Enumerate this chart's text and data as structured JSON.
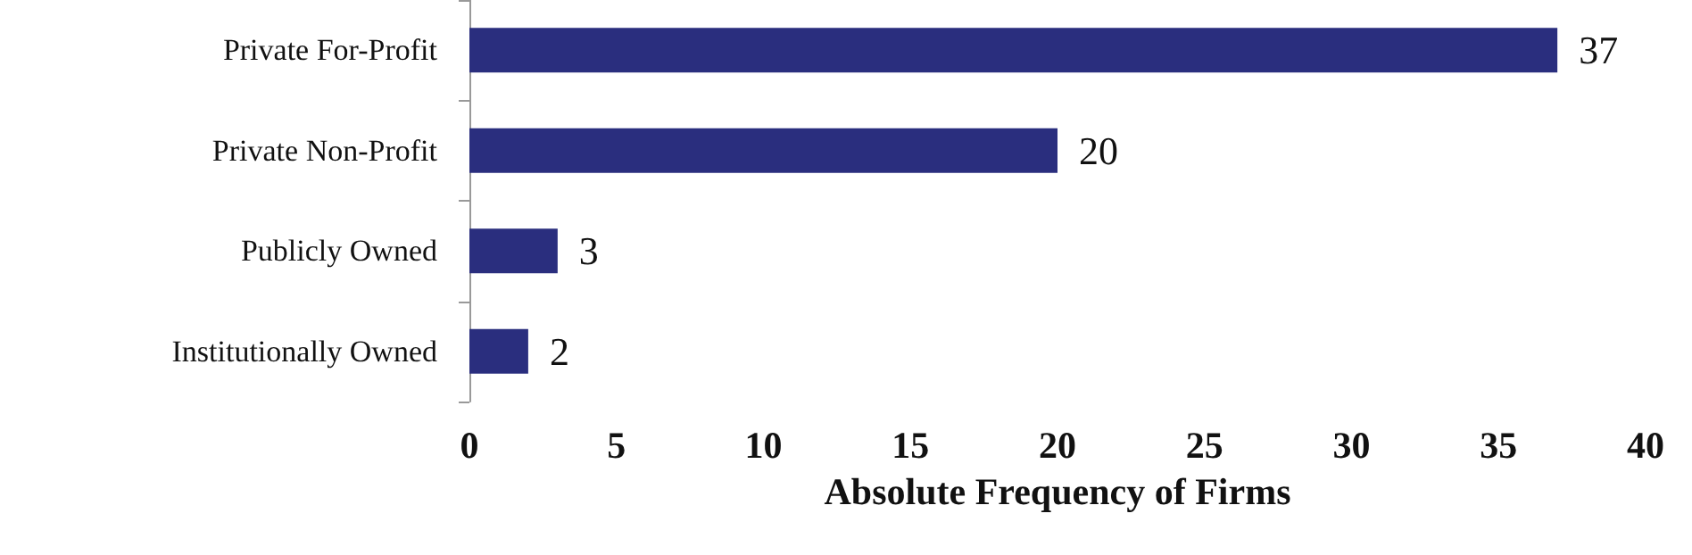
{
  "chart_data": {
    "type": "bar",
    "orientation": "horizontal",
    "xlabel": "Absolute Frequency of Firms",
    "categories": [
      "Private For-Profit",
      "Private Non-Profit",
      "Publicly Owned",
      "Institutionally Owned"
    ],
    "values": [
      37,
      20,
      3,
      2
    ],
    "color": "#2a2e7e",
    "data_labels": true,
    "xlim": [
      0,
      40
    ],
    "xticks": [
      0,
      5,
      10,
      15,
      20,
      25,
      30,
      35,
      40
    ],
    "grid": false
  }
}
